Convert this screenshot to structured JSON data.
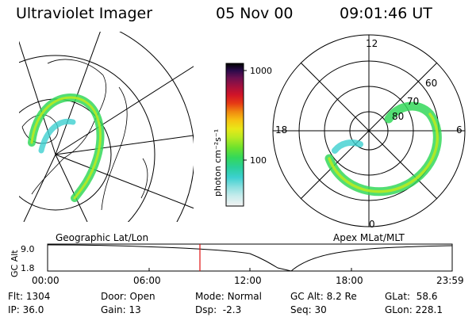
{
  "header": {
    "instrument": "Ultraviolet Imager",
    "date": "05 Nov 00",
    "time": "09:01:46 UT"
  },
  "left_panel": {
    "caption": "Geographic Lat/Lon"
  },
  "right_panel": {
    "caption": "Apex MLat/MLT",
    "mlt_labels": {
      "top": "12",
      "left": "18",
      "right": "6",
      "bottom": "0"
    },
    "lat_labels": [
      "60",
      "70",
      "80"
    ]
  },
  "colorbar": {
    "label": "photon cm⁻²s⁻¹",
    "scale": "log",
    "ticks": [
      "1000",
      "100"
    ],
    "colors": [
      "#f2f2f2",
      "#c8ecec",
      "#8fe0e0",
      "#3dd0d0",
      "#2ad09a",
      "#34d85a",
      "#6ee22c",
      "#b8ea22",
      "#e8e818",
      "#f6c412",
      "#f08a10",
      "#e63a14",
      "#d01428",
      "#a2103e",
      "#6a1050",
      "#2a0a4a",
      "#000000"
    ]
  },
  "timeline": {
    "y_axis_label": "GC Alt",
    "y_ticks": [
      "9.0",
      "1.8"
    ],
    "x_ticks": [
      "00:00",
      "06:00",
      "12:00",
      "18:00",
      "23:59"
    ],
    "current_time": "09:01"
  },
  "status": {
    "flt": {
      "label": "Flt:",
      "value": "1304"
    },
    "ip": {
      "label": "IP:",
      "value": "36.0"
    },
    "door": {
      "label": "Door:",
      "value": "Open"
    },
    "gain": {
      "label": "Gain:",
      "value": "13"
    },
    "mode": {
      "label": "Mode:",
      "value": "Normal"
    },
    "dsp": {
      "label": "Dsp:",
      "value": "-2.3"
    },
    "gcalt": {
      "label": "GC Alt:",
      "value": "8.2 Re"
    },
    "seq": {
      "label": "Seq:",
      "value": "30"
    },
    "glat": {
      "label": "GLat:",
      "value": "58.6"
    },
    "glon": {
      "label": "GLon:",
      "value": "228.1"
    }
  }
}
